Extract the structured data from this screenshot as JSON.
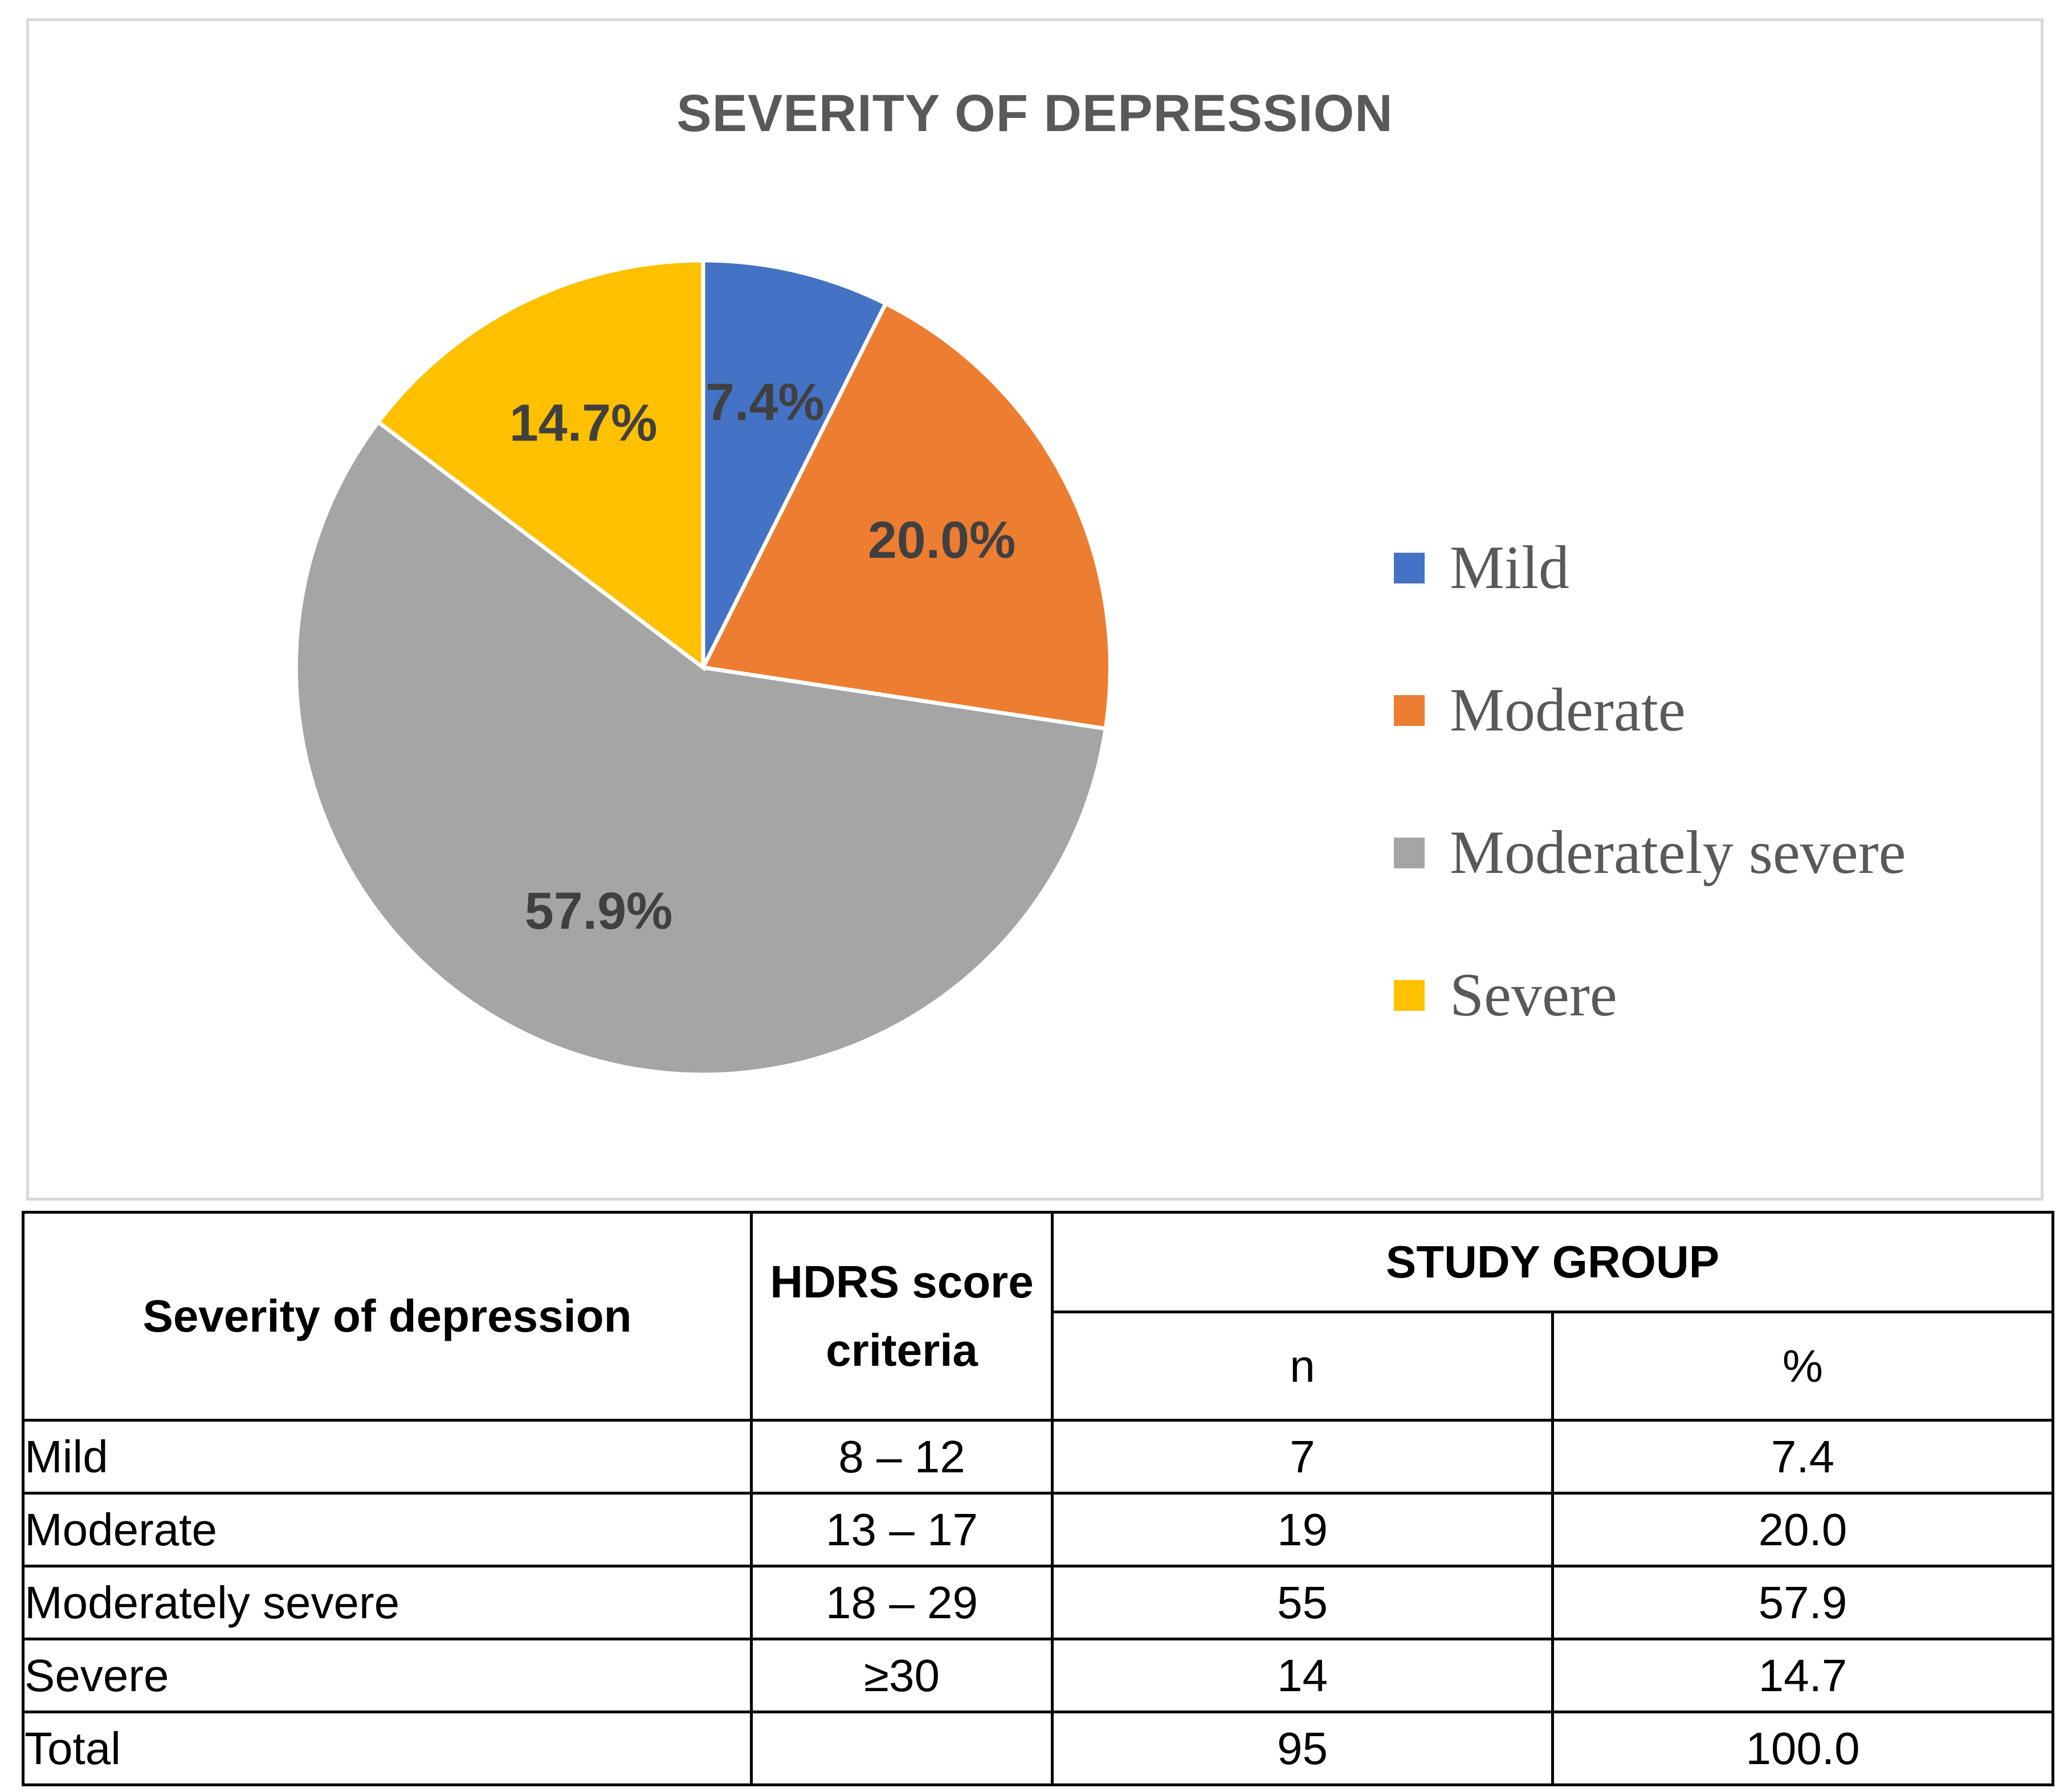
{
  "chart_data": {
    "type": "pie",
    "title": "SEVERITY OF DEPRESSION",
    "categories": [
      "Mild",
      "Moderate",
      "Moderately severe",
      "Severe"
    ],
    "values": [
      7.4,
      20.0,
      57.9,
      14.7
    ],
    "data_labels": [
      "7.4%",
      "20.0%",
      "57.9%",
      "14.7%"
    ],
    "colors": [
      "#4472c4",
      "#ed7d31",
      "#a5a5a5",
      "#ffc000"
    ],
    "legend_position": "right",
    "start_angle": "top, clockwise"
  },
  "table": {
    "headers": {
      "severity": "Severity of depression",
      "hdrs": "HDRS score criteria",
      "study_group": "STUDY GROUP",
      "n": "n",
      "percent": "%"
    },
    "rows": [
      {
        "severity": "Mild",
        "hdrs": "8 – 12",
        "n": "7",
        "percent": "7.4"
      },
      {
        "severity": "Moderate",
        "hdrs": "13 – 17",
        "n": "19",
        "percent": "20.0"
      },
      {
        "severity": "Moderately severe",
        "hdrs": "18 – 29",
        "n": "55",
        "percent": "57.9"
      },
      {
        "severity": "Severe",
        "hdrs": "≥30",
        "n": "14",
        "percent": "14.7"
      },
      {
        "severity": "Total",
        "hdrs": "",
        "n": "95",
        "percent": "100.0"
      }
    ]
  }
}
